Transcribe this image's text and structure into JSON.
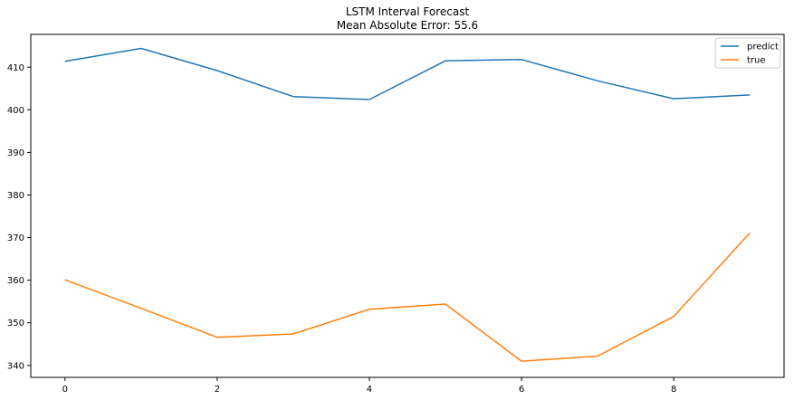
{
  "chart_data": {
    "type": "line",
    "title": "LSTM Interval Forecast",
    "subtitle": "Mean Absolute Error: 55.6",
    "xlabel": "",
    "ylabel": "",
    "x": [
      0,
      1,
      2,
      3,
      4,
      5,
      6,
      7,
      8,
      9
    ],
    "xlim": [
      -0.45,
      9.45
    ],
    "ylim": [
      337.2,
      417.7
    ],
    "xticks": [
      "0",
      "2",
      "4",
      "6",
      "8"
    ],
    "yticks": [
      "340",
      "350",
      "360",
      "370",
      "380",
      "390",
      "400",
      "410"
    ],
    "grid": false,
    "legend_position": "top-right",
    "series": [
      {
        "name": "predict",
        "color": "#1f77b4",
        "values": [
          411.4,
          414.4,
          409.2,
          403.1,
          402.4,
          411.5,
          411.8,
          406.8,
          402.6,
          403.5
        ]
      },
      {
        "name": "true",
        "color": "#ff7f0e",
        "values": [
          360.1,
          353.4,
          346.6,
          347.4,
          353.2,
          354.4,
          341.0,
          342.2,
          351.5,
          371.1
        ]
      }
    ]
  }
}
